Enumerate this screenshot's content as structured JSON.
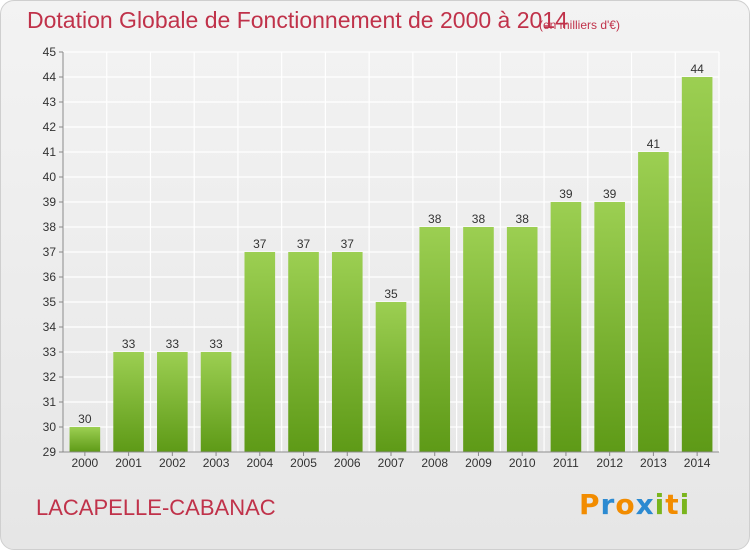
{
  "colors": {
    "title": "#c0324a",
    "bar_top": "#9ccf52",
    "bar_bottom": "#5e9a17",
    "grid": "#ffffff",
    "text": "#333333"
  },
  "footer": {
    "commune": "LACAPELLE-CABANAC",
    "logo_letters": [
      "P",
      "r",
      "o",
      "x",
      "i",
      "t",
      "i"
    ],
    "logo_colors": [
      "#f28c00",
      "#2c8ad1",
      "#f28c00",
      "#2c8ad1",
      "#7ab51d",
      "#f28c00",
      "#7ab51d"
    ]
  },
  "chart_data": {
    "type": "bar",
    "title": "Dotation Globale de Fonctionnement de 2000 à 2014",
    "subtitle": "(en milliers d'€)",
    "categories": [
      "2000",
      "2001",
      "2002",
      "2003",
      "2004",
      "2005",
      "2006",
      "2007",
      "2008",
      "2009",
      "2010",
      "2011",
      "2012",
      "2013",
      "2014"
    ],
    "values": [
      30,
      33,
      33,
      33,
      37,
      37,
      37,
      35,
      38,
      38,
      38,
      39,
      39,
      41,
      44
    ],
    "data_labels": [
      "30",
      "33",
      "33",
      "33",
      "37",
      "37",
      "37",
      "35",
      "38",
      "38",
      "38",
      "39",
      "39",
      "41",
      "44"
    ],
    "ylim": [
      29,
      45
    ],
    "yticks": [
      29,
      30,
      31,
      32,
      33,
      34,
      35,
      36,
      37,
      38,
      39,
      40,
      41,
      42,
      43,
      44,
      45
    ],
    "grid": true,
    "xlabel": "",
    "ylabel": ""
  }
}
